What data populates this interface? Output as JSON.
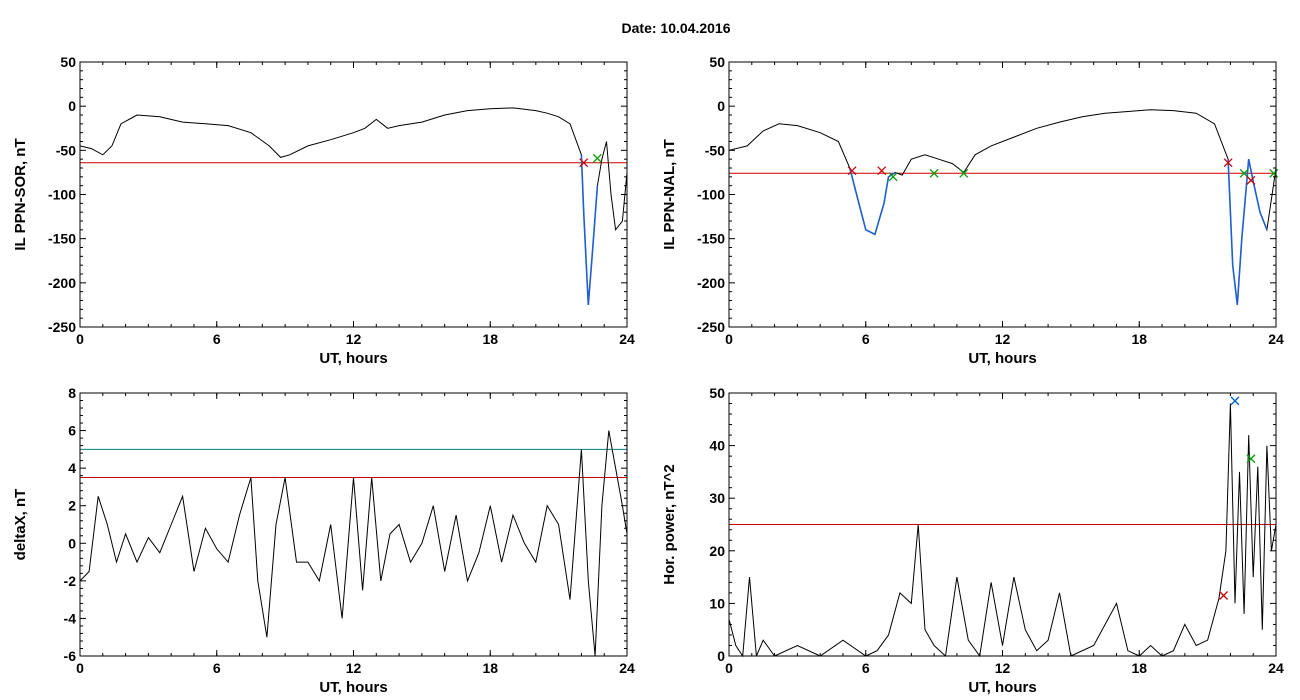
{
  "header": {
    "title": "Date:  10.04.2016"
  },
  "colors": {
    "trace": "#000000",
    "highlight": "#1f5fd0",
    "threshold": "#cc0000",
    "threshold2": "#008080",
    "marker_red": "#cc0000",
    "marker_green": "#00a000",
    "marker_blue": "#0060c0"
  },
  "chart_data": [
    {
      "type": "line",
      "xlabel": "UT, hours",
      "ylabel": "IL PPN-SOR, nT",
      "xlim": [
        0,
        24
      ],
      "ylim": [
        -250,
        50
      ],
      "xticks": [
        "0",
        "6",
        "12",
        "18",
        "24"
      ],
      "yticks": [
        "50",
        "0",
        "-50",
        "-100",
        "-150",
        "-200",
        "-250"
      ],
      "threshold_lines": [
        {
          "y": -64,
          "color": "#cc0000"
        }
      ],
      "series": [
        {
          "x": [
            0,
            0.5,
            1,
            1.4,
            1.8,
            2.5,
            3.5,
            4.5,
            5.5,
            6.5,
            7.5,
            8.3,
            8.8,
            9.2,
            10,
            11,
            12,
            12.5,
            13,
            13.5,
            14,
            15,
            16,
            17,
            18,
            19,
            20,
            20.5,
            21,
            21.5,
            22,
            22.1,
            22.3,
            22.5,
            22.7,
            22.9,
            23.1,
            23.3,
            23.5,
            23.8,
            24
          ],
          "y": [
            -45,
            -48,
            -55,
            -45,
            -20,
            -10,
            -12,
            -18,
            -20,
            -22,
            -30,
            -45,
            -58,
            -55,
            -45,
            -38,
            -30,
            -25,
            -15,
            -25,
            -22,
            -18,
            -10,
            -5,
            -3,
            -2,
            -5,
            -8,
            -12,
            -20,
            -55,
            -120,
            -225,
            -160,
            -90,
            -60,
            -40,
            -100,
            -140,
            -130,
            -75
          ]
        }
      ],
      "highlight_ranges": [
        [
          22.0,
          22.8
        ]
      ],
      "markers": [
        {
          "x": 22.1,
          "y": -64,
          "symbol": "x",
          "color": "#cc0000"
        },
        {
          "x": 22.7,
          "y": -59,
          "symbol": "x",
          "color": "#00a000"
        }
      ]
    },
    {
      "type": "line",
      "xlabel": "UT, hours",
      "ylabel": "IL PPN-NAL, nT",
      "xlim": [
        0,
        24
      ],
      "ylim": [
        -250,
        50
      ],
      "xticks": [
        "0",
        "6",
        "12",
        "18",
        "24"
      ],
      "yticks": [
        "50",
        "0",
        "-50",
        "-100",
        "-150",
        "-200",
        "-250"
      ],
      "threshold_lines": [
        {
          "y": -76,
          "color": "#cc0000"
        }
      ],
      "series": [
        {
          "x": [
            0,
            0.8,
            1.5,
            2.2,
            3,
            4,
            4.8,
            5.3,
            5.6,
            6,
            6.4,
            6.8,
            7,
            7.3,
            7.6,
            8,
            8.6,
            9.2,
            9.8,
            10.3,
            10.8,
            11.5,
            12.5,
            13.5,
            14.5,
            15.5,
            16.5,
            17.5,
            18.5,
            19.5,
            20.5,
            21.3,
            21.9,
            22.1,
            22.3,
            22.5,
            22.8,
            23,
            23.3,
            23.6,
            24
          ],
          "y": [
            -50,
            -45,
            -28,
            -20,
            -22,
            -30,
            -40,
            -70,
            -100,
            -140,
            -145,
            -110,
            -80,
            -75,
            -78,
            -60,
            -55,
            -60,
            -65,
            -75,
            -55,
            -45,
            -35,
            -25,
            -18,
            -12,
            -8,
            -6,
            -4,
            -5,
            -8,
            -20,
            -60,
            -180,
            -225,
            -150,
            -60,
            -85,
            -120,
            -140,
            -70
          ]
        }
      ],
      "highlight_ranges": [
        [
          5.3,
          7.3
        ],
        [
          21.9,
          23.9
        ]
      ],
      "markers": [
        {
          "x": 5.4,
          "y": -73,
          "symbol": "x",
          "color": "#cc0000"
        },
        {
          "x": 6.7,
          "y": -73,
          "symbol": "x",
          "color": "#cc0000"
        },
        {
          "x": 7.2,
          "y": -80,
          "symbol": "x",
          "color": "#00a000"
        },
        {
          "x": 9.0,
          "y": -76,
          "symbol": "x",
          "color": "#00a000"
        },
        {
          "x": 10.3,
          "y": -76,
          "symbol": "x",
          "color": "#00a000"
        },
        {
          "x": 21.9,
          "y": -64,
          "symbol": "x",
          "color": "#cc0000"
        },
        {
          "x": 22.6,
          "y": -76,
          "symbol": "x",
          "color": "#00a000"
        },
        {
          "x": 22.9,
          "y": -84,
          "symbol": "x",
          "color": "#cc0000"
        },
        {
          "x": 23.9,
          "y": -76,
          "symbol": "x",
          "color": "#00a000"
        }
      ]
    },
    {
      "type": "line",
      "xlabel": "UT, hours",
      "ylabel": "deltaX, nT",
      "xlim": [
        0,
        24
      ],
      "ylim": [
        -6,
        8
      ],
      "xticks": [
        "0",
        "6",
        "12",
        "18",
        "24"
      ],
      "yticks": [
        "8",
        "6",
        "4",
        "2",
        "0",
        "-2",
        "-4",
        "-6"
      ],
      "threshold_lines": [
        {
          "y": 5,
          "color": "#008080"
        },
        {
          "y": 3.5,
          "color": "#cc0000"
        }
      ],
      "series": [
        {
          "x": [
            0,
            0.4,
            0.8,
            1.2,
            1.6,
            2,
            2.5,
            3,
            3.5,
            4,
            4.5,
            5,
            5.5,
            6,
            6.5,
            7,
            7.5,
            7.8,
            8.2,
            8.6,
            9,
            9.5,
            10,
            10.5,
            11,
            11.5,
            12,
            12.4,
            12.8,
            13.2,
            13.6,
            14,
            14.5,
            15,
            15.5,
            16,
            16.5,
            17,
            17.5,
            18,
            18.5,
            19,
            19.5,
            20,
            20.5,
            21,
            21.5,
            22,
            22.3,
            22.6,
            22.9,
            23.2,
            23.5,
            23.8,
            24
          ],
          "y": [
            -2,
            -1.5,
            2.5,
            1,
            -1,
            0.5,
            -1,
            0.3,
            -0.5,
            1,
            2.5,
            -1.5,
            0.8,
            -0.3,
            -1,
            1.5,
            3.5,
            -2,
            -5,
            1,
            3.5,
            -1,
            -1,
            -2,
            1,
            -4,
            3.5,
            -2.5,
            3.5,
            -2,
            0.5,
            1,
            -1,
            0,
            2,
            -1.5,
            1.5,
            -2,
            -0.5,
            2,
            -1,
            1.5,
            0,
            -1,
            2,
            1,
            -3,
            5,
            -2,
            -6,
            2,
            6,
            4,
            2,
            0.5
          ]
        }
      ],
      "highlight_ranges": []
    },
    {
      "type": "line",
      "xlabel": "UT, hours",
      "ylabel": "Hor. power, nT^2",
      "xlim": [
        0,
        24
      ],
      "ylim": [
        0,
        50
      ],
      "xticks": [
        "0",
        "6",
        "12",
        "18",
        "24"
      ],
      "yticks": [
        "50",
        "40",
        "30",
        "20",
        "10",
        "0"
      ],
      "threshold_lines": [
        {
          "y": 25,
          "color": "#cc0000"
        }
      ],
      "series": [
        {
          "x": [
            0,
            0.3,
            0.6,
            0.9,
            1.2,
            1.5,
            2,
            3,
            4,
            5,
            6,
            6.5,
            7,
            7.5,
            8,
            8.3,
            8.6,
            9,
            9.5,
            10,
            10.5,
            11,
            11.5,
            12,
            12.5,
            13,
            13.5,
            14,
            14.5,
            15,
            16,
            17,
            17.5,
            18,
            18.5,
            19,
            19.5,
            20,
            20.5,
            21,
            21.5,
            21.8,
            22,
            22.2,
            22.4,
            22.6,
            22.8,
            23,
            23.2,
            23.4,
            23.6,
            23.8,
            24
          ],
          "y": [
            7,
            2,
            0,
            15,
            0,
            3,
            0,
            2,
            0,
            3,
            0,
            1,
            4,
            12,
            10,
            25,
            5,
            2,
            0,
            15,
            3,
            0,
            14,
            2,
            15,
            5,
            1,
            3,
            12,
            0,
            2,
            10,
            1,
            0,
            2,
            0,
            1,
            6,
            2,
            3,
            11,
            20,
            48,
            10,
            35,
            8,
            42,
            15,
            36,
            5,
            40,
            20,
            25
          ]
        }
      ],
      "highlight_ranges": [],
      "markers": [
        {
          "x": 21.7,
          "y": 11.5,
          "symbol": "x",
          "color": "#cc0000"
        },
        {
          "x": 22.2,
          "y": 48.5,
          "symbol": "x",
          "color": "#0060c0"
        },
        {
          "x": 22.9,
          "y": 37.5,
          "symbol": "x",
          "color": "#00a000"
        }
      ]
    }
  ]
}
